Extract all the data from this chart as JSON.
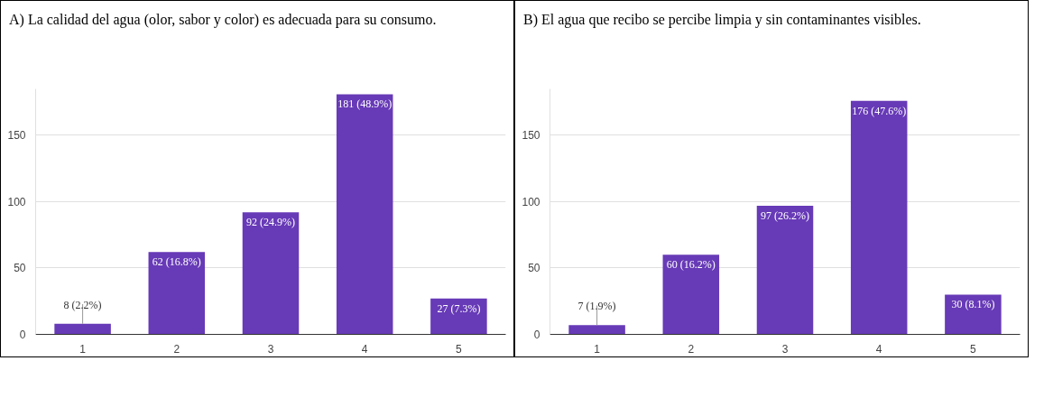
{
  "chart_data": [
    {
      "type": "bar",
      "title": "A) La calidad del agua (olor, sabor y color) es adecuada para su consumo.",
      "categories": [
        "1",
        "2",
        "3",
        "4",
        "5"
      ],
      "values": [
        8,
        62,
        92,
        181,
        27
      ],
      "color": "#673ab7",
      "value_labels": [
        "8 (2.2%)",
        "62 (16.8%)",
        "92 (24.9%)",
        "181 (48.9%)",
        "27 (7.3%)"
      ],
      "ylim": [
        0,
        185
      ],
      "yticks": [
        0,
        50,
        100,
        150
      ],
      "grid": "y"
    },
    {
      "type": "bar",
      "title": "B) El agua que recibo se percibe limpia y sin contaminantes visibles.",
      "categories": [
        "1",
        "2",
        "3",
        "4",
        "5"
      ],
      "values": [
        7,
        60,
        97,
        176,
        30
      ],
      "color": "#673ab7",
      "value_labels": [
        "7 (1.9%)",
        "60 (16.2%)",
        "97 (26.2%)",
        "176 (47.6%)",
        "30 (8.1%)"
      ],
      "ylim": [
        0,
        185
      ],
      "yticks": [
        0,
        50,
        100,
        150
      ],
      "grid": "y"
    }
  ]
}
